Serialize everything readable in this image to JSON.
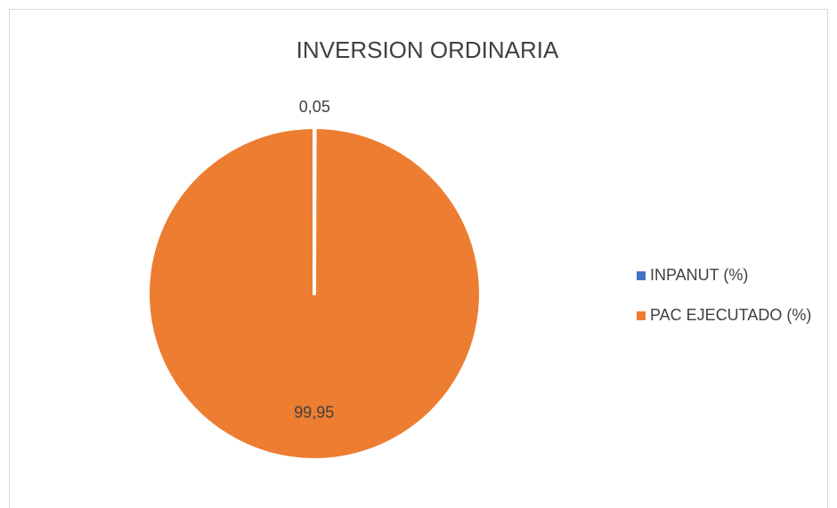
{
  "chart_data": {
    "type": "pie",
    "title": "INVERSION ORDINARIA",
    "categories": [
      "INPANUT (%)",
      "PAC EJECUTADO (%)"
    ],
    "values": [
      0.05,
      99.95
    ],
    "value_labels": [
      "0,05",
      "99,95"
    ],
    "colors": [
      "#4472c4",
      "#ed7d31"
    ],
    "legend": "right"
  }
}
